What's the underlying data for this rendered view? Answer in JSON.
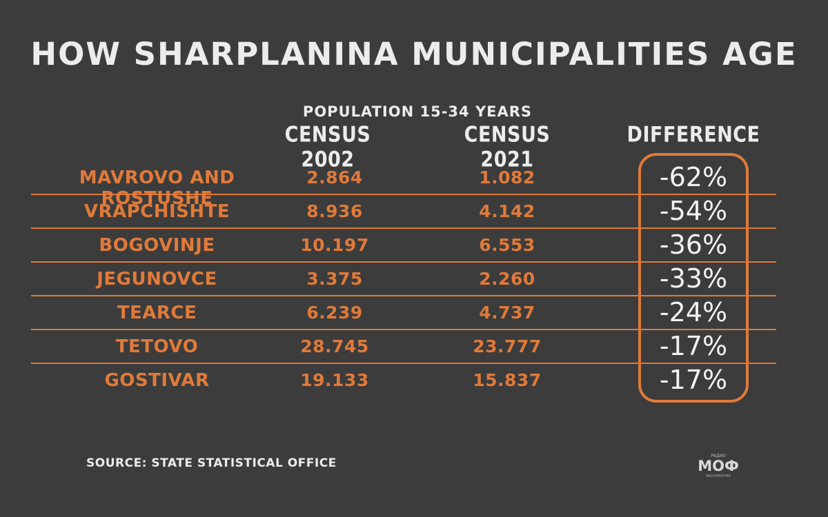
{
  "title": "HOW SHARPLANINA MUNICIPALITIES AGE",
  "subtitle": "POPULATION 15-34 YEARS",
  "columns": {
    "census_2002": "CENSUS 2002",
    "census_2021": "CENSUS 2021",
    "difference": "DIFFERENCE"
  },
  "source": "SOURCE: STATE STATISTICAL OFFICE",
  "logo": {
    "text": "МОФ",
    "top_text": "РАДИО",
    "bottom_text": "RADIOMOF.MK"
  },
  "colors": {
    "background": "#3c3c3c",
    "accent": "#e07a3a",
    "text": "#ececec"
  },
  "chart_data": {
    "type": "table",
    "title": "HOW SHARPLANINA MUNICIPALITIES AGE",
    "subtitle": "POPULATION 15-34 YEARS",
    "headers": [
      "",
      "CENSUS 2002",
      "CENSUS 2021",
      "DIFFERENCE"
    ],
    "rows": [
      {
        "municipality": "MAVROVO AND ROSTUSHE",
        "census_2002": "2.864",
        "census_2021": "1.082",
        "difference": "-62%"
      },
      {
        "municipality": "VRAPCHISHTE",
        "census_2002": "8.936",
        "census_2021": "4.142",
        "difference": "-54%"
      },
      {
        "municipality": "BOGOVINJE",
        "census_2002": "10.197",
        "census_2021": "6.553",
        "difference": "-36%"
      },
      {
        "municipality": "JEGUNOVCE",
        "census_2002": "3.375",
        "census_2021": "2.260",
        "difference": "-33%"
      },
      {
        "municipality": "TEARCE",
        "census_2002": "6.239",
        "census_2021": "4.737",
        "difference": "-24%"
      },
      {
        "municipality": "TETOVO",
        "census_2002": "28.745",
        "census_2021": "23.777",
        "difference": "-17%"
      },
      {
        "municipality": "GOSTIVAR",
        "census_2002": "19.133",
        "census_2021": "15.837",
        "difference": "-17%"
      }
    ]
  }
}
